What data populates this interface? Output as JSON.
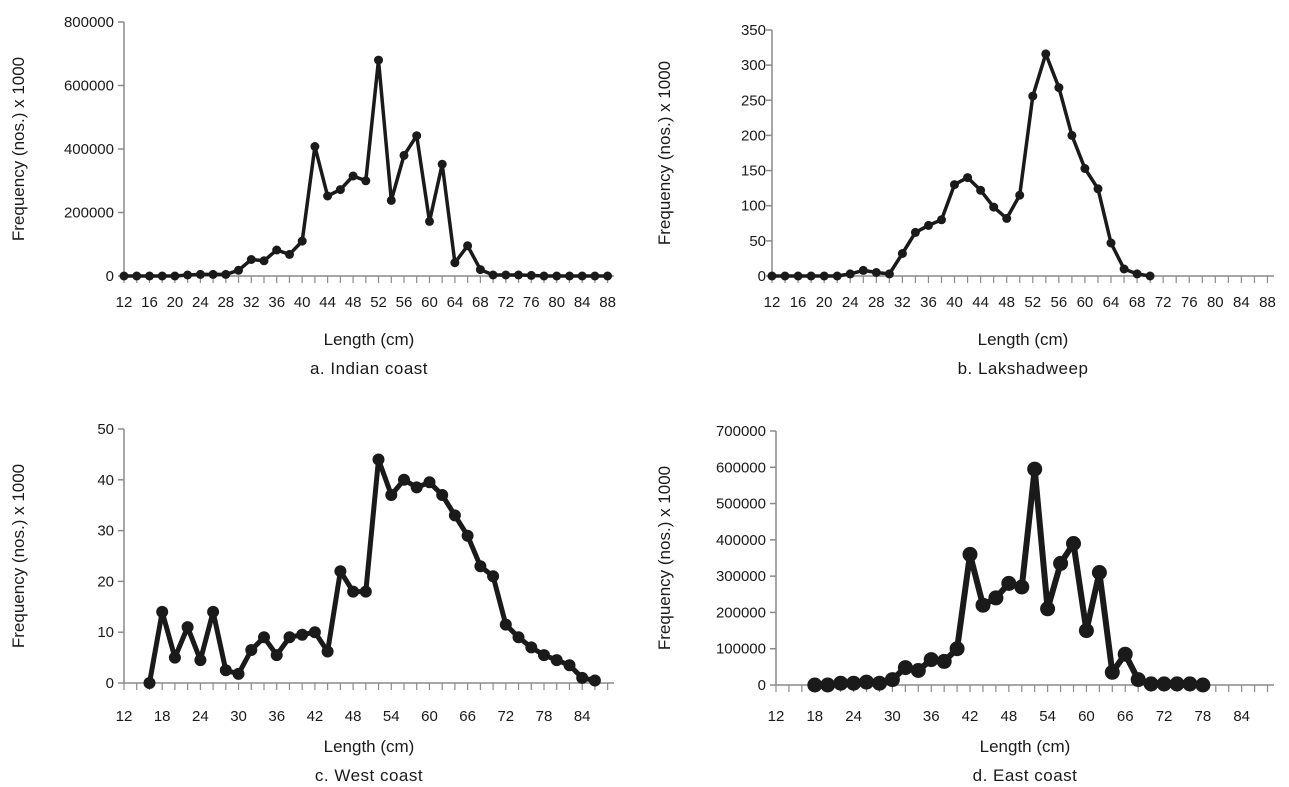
{
  "chart_data": [
    {
      "type": "line",
      "caption": "a. Indian coast",
      "xlabel": "Length (cm)",
      "ylabel": "Frequency (nos.) x 1000",
      "xlim": [
        12,
        89
      ],
      "ylim": [
        0,
        800000
      ],
      "yticks": [
        0,
        200000,
        400000,
        600000,
        800000
      ],
      "xticks": [
        12,
        16,
        20,
        24,
        28,
        32,
        36,
        40,
        44,
        48,
        52,
        56,
        60,
        64,
        68,
        72,
        76,
        80,
        84,
        88
      ],
      "xtick_labels": [
        "12",
        "16",
        "20",
        "24",
        "28",
        "32",
        "36",
        "40",
        "44",
        "48",
        "52",
        "56",
        "60",
        "64",
        "68",
        "72",
        "76",
        "80",
        "84",
        "88"
      ],
      "series": [
        {
          "x": [
            12,
            14,
            16,
            18,
            20,
            22,
            24,
            26,
            28,
            30,
            32,
            34,
            36,
            38,
            40,
            42,
            44,
            46,
            48,
            50,
            52,
            54,
            56,
            58,
            60,
            62,
            64,
            66,
            68,
            70,
            72,
            74,
            76,
            78,
            80,
            82,
            84,
            86,
            88
          ],
          "y": [
            0,
            0,
            0,
            0,
            0,
            3000,
            5000,
            5000,
            5000,
            18000,
            52000,
            48000,
            82000,
            68000,
            110000,
            408000,
            252000,
            272000,
            315000,
            300000,
            680000,
            238000,
            380000,
            442000,
            172000,
            352000,
            42000,
            95000,
            20000,
            3000,
            3000,
            3000,
            2000,
            0,
            0,
            0,
            0,
            0,
            0
          ]
        }
      ],
      "style": {
        "line_width": 3.5,
        "marker_radius": 4.5
      }
    },
    {
      "type": "line",
      "caption": "b. Lakshadweep",
      "xlabel": "Length (cm)",
      "ylabel": "Frequency (nos.) x 1000",
      "xlim": [
        12,
        89
      ],
      "ylim": [
        0,
        350
      ],
      "yticks": [
        0,
        50,
        100,
        150,
        200,
        250,
        300,
        350
      ],
      "xticks": [
        12,
        16,
        20,
        24,
        28,
        32,
        36,
        40,
        44,
        48,
        52,
        56,
        60,
        64,
        68,
        72,
        76,
        80,
        84,
        88
      ],
      "xtick_labels": [
        "12",
        "16",
        "20",
        "24",
        "28",
        "32",
        "36",
        "40",
        "44",
        "48",
        "52",
        "56",
        "60",
        "64",
        "68",
        "72",
        "76",
        "80",
        "84",
        "88"
      ],
      "series": [
        {
          "x": [
            12,
            14,
            16,
            18,
            20,
            22,
            24,
            26,
            28,
            30,
            32,
            34,
            36,
            38,
            40,
            42,
            44,
            46,
            48,
            50,
            52,
            54,
            56,
            58,
            60,
            62,
            64,
            66,
            68,
            70
          ],
          "y": [
            0,
            0,
            0,
            0,
            0,
            0,
            3,
            8,
            5,
            3,
            32,
            62,
            72,
            80,
            130,
            140,
            122,
            98,
            82,
            115,
            256,
            316,
            268,
            200,
            153,
            124,
            47,
            10,
            3,
            0
          ]
        }
      ],
      "style": {
        "line_width": 3.5,
        "marker_radius": 4.5
      }
    },
    {
      "type": "line",
      "caption": "c. West coast",
      "xlabel": "Length (cm)",
      "ylabel": "Frequency (nos.) x 1000",
      "xlim": [
        12,
        89
      ],
      "ylim": [
        0,
        50
      ],
      "yticks": [
        0,
        10,
        20,
        30,
        40,
        50
      ],
      "xticks": [
        12,
        18,
        24,
        30,
        36,
        42,
        48,
        54,
        60,
        66,
        72,
        78,
        84
      ],
      "xtick_labels": [
        "12",
        "18",
        "24",
        "30",
        "36",
        "42",
        "48",
        "54",
        "60",
        "66",
        "72",
        "78",
        "84"
      ],
      "series": [
        {
          "x": [
            16,
            18,
            20,
            22,
            24,
            26,
            28,
            30,
            32,
            34,
            36,
            38,
            40,
            42,
            44,
            46,
            48,
            50,
            52,
            54,
            56,
            58,
            60,
            62,
            64,
            66,
            68,
            70,
            72,
            74,
            76,
            78,
            80,
            82,
            84,
            86
          ],
          "y": [
            0,
            14,
            5,
            11,
            4.5,
            14,
            2.5,
            1.8,
            6.5,
            9,
            5.5,
            9,
            9.5,
            10,
            6.2,
            22,
            18,
            18,
            44,
            37,
            40,
            38.5,
            39.5,
            37,
            33,
            29,
            23,
            21,
            11.5,
            9,
            7,
            5.5,
            4.5,
            3.5,
            1,
            0.5
          ]
        }
      ],
      "style": {
        "line_width": 5,
        "marker_radius": 6
      }
    },
    {
      "type": "line",
      "caption": "d. East coast",
      "xlabel": "Length (cm)",
      "ylabel": "Frequency (nos.) x 1000",
      "xlim": [
        12,
        89
      ],
      "ylim": [
        0,
        700000
      ],
      "yticks": [
        0,
        100000,
        200000,
        300000,
        400000,
        500000,
        600000,
        700000
      ],
      "xticks": [
        12,
        18,
        24,
        30,
        36,
        42,
        48,
        54,
        60,
        66,
        72,
        78,
        84
      ],
      "xtick_labels": [
        "12",
        "18",
        "24",
        "30",
        "36",
        "42",
        "48",
        "54",
        "60",
        "66",
        "72",
        "78",
        "84"
      ],
      "series": [
        {
          "x": [
            18,
            20,
            22,
            24,
            26,
            28,
            30,
            32,
            34,
            36,
            38,
            40,
            42,
            44,
            46,
            48,
            50,
            52,
            54,
            56,
            58,
            60,
            62,
            64,
            66,
            68,
            70,
            72,
            74,
            76,
            78
          ],
          "y": [
            0,
            0,
            5000,
            5000,
            8000,
            5000,
            15000,
            48000,
            40000,
            70000,
            65000,
            100000,
            360000,
            220000,
            240000,
            280000,
            270000,
            595000,
            210000,
            335000,
            390000,
            150000,
            310000,
            35000,
            85000,
            15000,
            3000,
            3000,
            3000,
            3000,
            0
          ]
        }
      ],
      "style": {
        "line_width": 6,
        "marker_radius": 7.5
      }
    }
  ]
}
